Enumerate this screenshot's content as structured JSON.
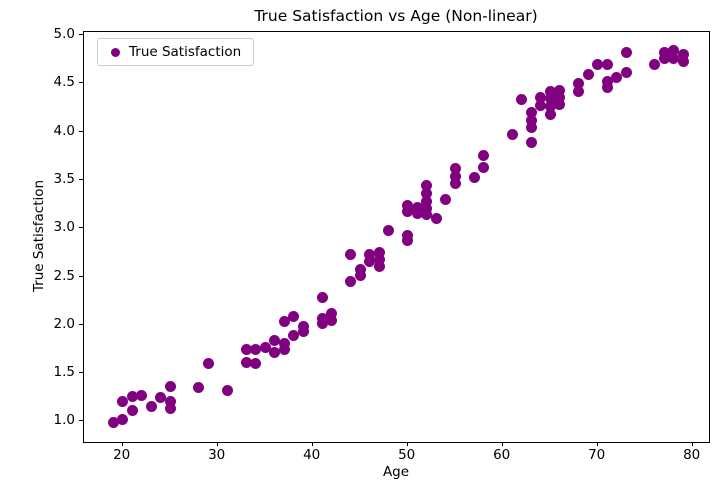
{
  "chart_data": {
    "type": "scatter",
    "title": "True Satisfaction vs Age (Non-linear)",
    "xlabel": "Age",
    "ylabel": "True Satisfaction",
    "xlim": [
      15.93,
      81.72
    ],
    "ylim": [
      0.787,
      5.033
    ],
    "xticks": [
      20,
      30,
      40,
      50,
      60,
      70,
      80
    ],
    "yticks": [
      1.0,
      1.5,
      2.0,
      2.5,
      3.0,
      3.5,
      4.0,
      4.5,
      5.0
    ],
    "grid": false,
    "legend_position": "upper left",
    "series": [
      {
        "name": "True Satisfaction",
        "color": "#800080",
        "points": [
          [
            19,
            0.99
          ],
          [
            20,
            1.02
          ],
          [
            20,
            1.21
          ],
          [
            21,
            1.11
          ],
          [
            21,
            1.26
          ],
          [
            22,
            1.27
          ],
          [
            23,
            1.15
          ],
          [
            24,
            1.25
          ],
          [
            25,
            1.36
          ],
          [
            25,
            1.21
          ],
          [
            25,
            1.13
          ],
          [
            28,
            1.35
          ],
          [
            29,
            1.6
          ],
          [
            31,
            1.32
          ],
          [
            33,
            1.75
          ],
          [
            33,
            1.61
          ],
          [
            34,
            1.74
          ],
          [
            34,
            1.6
          ],
          [
            35,
            1.77
          ],
          [
            36,
            1.84
          ],
          [
            36,
            1.71
          ],
          [
            37,
            1.81
          ],
          [
            37,
            1.75
          ],
          [
            37,
            2.04
          ],
          [
            38,
            2.09
          ],
          [
            38,
            1.89
          ],
          [
            39,
            1.98
          ],
          [
            39,
            1.93
          ],
          [
            41,
            2.28
          ],
          [
            41,
            2.07
          ],
          [
            41,
            2.01
          ],
          [
            42,
            2.12
          ],
          [
            42,
            2.05
          ],
          [
            44,
            2.73
          ],
          [
            44,
            2.45
          ],
          [
            45,
            2.57
          ],
          [
            45,
            2.51
          ],
          [
            46,
            2.73
          ],
          [
            46,
            2.66
          ],
          [
            47,
            2.75
          ],
          [
            47,
            2.68
          ],
          [
            47,
            2.6
          ],
          [
            48,
            2.98
          ],
          [
            50,
            3.24
          ],
          [
            50,
            3.17
          ],
          [
            50,
            2.93
          ],
          [
            50,
            2.87
          ],
          [
            51,
            3.22
          ],
          [
            51,
            3.15
          ],
          [
            52,
            3.44
          ],
          [
            52,
            3.36
          ],
          [
            52,
            3.28
          ],
          [
            52,
            3.21
          ],
          [
            52,
            3.14
          ],
          [
            53,
            3.1
          ],
          [
            54,
            3.3
          ],
          [
            55,
            3.62
          ],
          [
            55,
            3.54
          ],
          [
            55,
            3.46
          ],
          [
            57,
            3.53
          ],
          [
            58,
            3.75
          ],
          [
            58,
            3.63
          ],
          [
            61,
            3.97
          ],
          [
            62,
            4.33
          ],
          [
            63,
            4.2
          ],
          [
            63,
            4.12
          ],
          [
            63,
            4.04
          ],
          [
            63,
            3.89
          ],
          [
            64,
            4.35
          ],
          [
            64,
            4.27
          ],
          [
            65,
            4.42
          ],
          [
            65,
            4.34
          ],
          [
            65,
            4.26
          ],
          [
            65,
            4.18
          ],
          [
            66,
            4.43
          ],
          [
            66,
            4.35
          ],
          [
            66,
            4.28
          ],
          [
            68,
            4.5
          ],
          [
            68,
            4.42
          ],
          [
            69,
            4.59
          ],
          [
            70,
            4.7
          ],
          [
            71,
            4.7
          ],
          [
            71,
            4.52
          ],
          [
            71,
            4.46
          ],
          [
            72,
            4.56
          ],
          [
            73,
            4.82
          ],
          [
            73,
            4.61
          ],
          [
            76,
            4.7
          ],
          [
            77,
            4.82
          ],
          [
            77,
            4.76
          ],
          [
            78,
            4.84
          ],
          [
            78,
            4.76
          ],
          [
            79,
            4.8
          ],
          [
            79,
            4.73
          ]
        ]
      }
    ]
  },
  "colors": {
    "marker": "#800080",
    "axis": "#000000",
    "legend_border": "#cccccc",
    "background": "#ffffff"
  }
}
